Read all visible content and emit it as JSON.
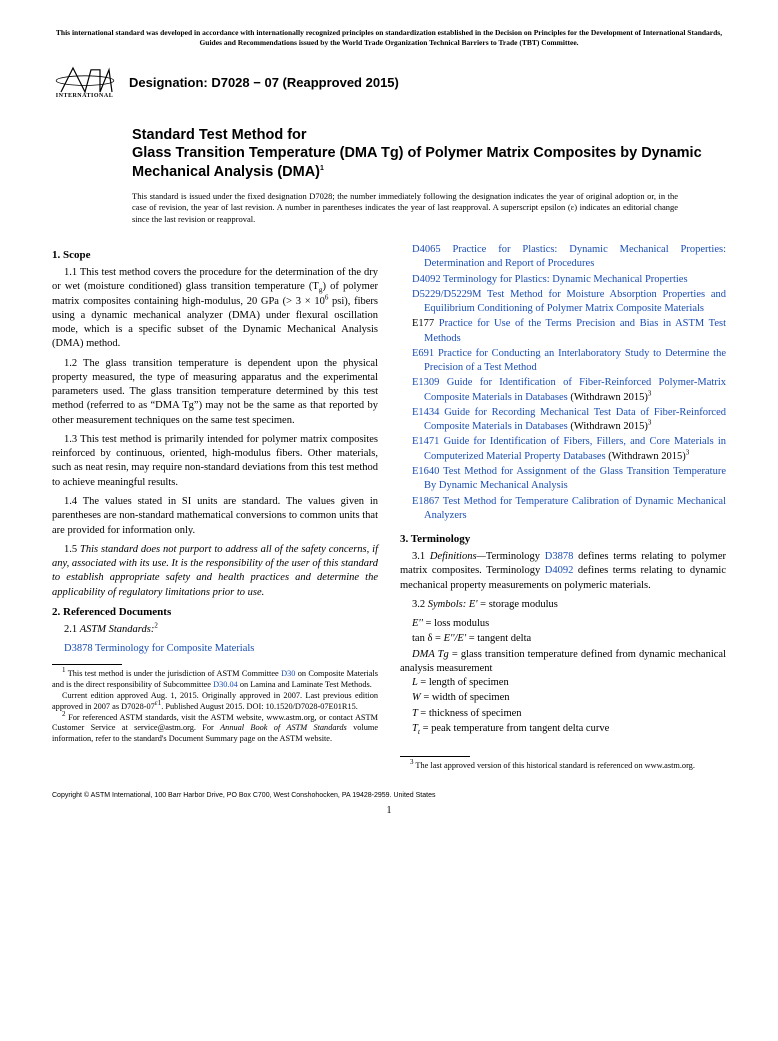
{
  "top_note": "This international standard was developed in accordance with internationally recognized principles on standardization established in the Decision on Principles for the Development of International Standards, Guides and Recommendations issued by the World Trade Organization Technical Barriers to Trade (TBT) Committee.",
  "logo_label": "INTERNATIONAL",
  "designation": "Designation: D7028 − 07 (Reapproved 2015)",
  "title_prefix": "Standard Test Method for",
  "title_main": "Glass Transition Temperature (DMA Tg) of Polymer Matrix Composites by Dynamic Mechanical Analysis (DMA)",
  "title_sup": "1",
  "issuance": "This standard is issued under the fixed designation D7028; the number immediately following the designation indicates the year of original adoption or, in the case of revision, the year of last revision. A number in parentheses indicates the year of last reapproval. A superscript epsilon (ε) indicates an editorial change since the last revision or reapproval.",
  "s1_head": "1. Scope",
  "s1_1a": "1.1 This test method covers the procedure for the determination of the dry or wet (moisture conditioned) glass transition temperature (T",
  "s1_1b": ") of polymer matrix composites containing high-modulus, 20 GPa (> 3 × 10",
  "s1_1c": " psi), fibers using a dynamic mechanical analyzer (DMA) under flexural oscillation mode, which is a specific subset of the Dynamic Mechanical Analysis (DMA) method.",
  "s1_2": "1.2 The glass transition temperature is dependent upon the physical property measured, the type of measuring apparatus and the experimental parameters used. The glass transition temperature determined by this test method (referred to as “DMA Tg”) may not be the same as that reported by other measurement techniques on the same test specimen.",
  "s1_3": "1.3 This test method is primarily intended for polymer matrix composites reinforced by continuous, oriented, high-modulus fibers. Other materials, such as neat resin, may require non-standard deviations from this test method to achieve meaningful results.",
  "s1_4": "1.4 The values stated in SI units are standard. The values given in parentheses are non-standard mathematical conversions to common units that are provided for information only.",
  "s1_5": "1.5 This standard does not purport to address all of the safety concerns, if any, associated with its use. It is the responsibility of the user of this standard to establish appropriate safety and health practices and determine the applicability of regulatory limitations prior to use.",
  "s2_head": "2. Referenced Documents",
  "s2_1": "2.1 ",
  "s2_1_it": "ASTM Standards:",
  "s2_sup": "2",
  "ref_left": {
    "code": "D3878",
    "text": "Terminology for Composite Materials"
  },
  "fn1a": " This test method is under the jurisdiction of ASTM Committee ",
  "fn1_l1": "D30",
  "fn1b": " on Composite Materials and is the direct responsibility of Subcommittee ",
  "fn1_l2": "D30.04",
  "fn1c": " on Lamina and Laminate Test Methods.",
  "fn1d": "Current edition approved Aug. 1, 2015. Originally approved in 2007. Last previous edition approved in 2007 as D7028-07",
  "fn1_eps": "ε1",
  "fn1e": ". Published August 2015. DOI: 10.1520/D7028-07E01R15.",
  "fn2a": " For referenced ASTM standards, visit the ASTM website, www.astm.org, or contact ASTM Customer Service at service@astm.org. For ",
  "fn2_it": "Annual Book of ASTM Standards",
  "fn2b": " volume information, refer to the standard's Document Summary page on the ASTM website.",
  "refs": [
    {
      "code": "D4065",
      "text": "Practice for Plastics: Dynamic Mechanical Properties: Determination and Report of Procedures"
    },
    {
      "code": "D4092",
      "text": "Terminology for Plastics: Dynamic Mechanical Properties"
    },
    {
      "code": "D5229/D5229M",
      "text": "Test Method for Moisture Absorption Properties and Equilibrium Conditioning of Polymer Matrix Composite Materials"
    },
    {
      "code": "E177",
      "text": "Practice for Use of the Terms Precision and Bias in ASTM Test Methods",
      "black": true
    },
    {
      "code": "E691",
      "text": "Practice for Conducting an Interlaboratory Study to Determine the Precision of a Test Method"
    },
    {
      "code": "E1309",
      "text": "Guide for Identification of Fiber-Reinforced Polymer-Matrix Composite Materials in Databases",
      "suffix": " (Withdrawn 2015)",
      "sup": "3"
    },
    {
      "code": "E1434",
      "text": "Guide for Recording Mechanical Test Data of Fiber-Reinforced Composite Materials in Databases",
      "suffix": " (Withdrawn 2015)",
      "sup": "3"
    },
    {
      "code": "E1471",
      "text": "Guide for Identification of Fibers, Fillers, and Core Materials in Computerized Material Property Databases",
      "suffix": " (Withdrawn 2015)",
      "sup": "3"
    },
    {
      "code": "E1640",
      "text": "Test Method for Assignment of the Glass Transition Temperature By Dynamic Mechanical Analysis"
    },
    {
      "code": "E1867",
      "text": "Test Method for Temperature Calibration of Dynamic Mechanical Analyzers"
    }
  ],
  "s3_head": "3. Terminology",
  "s3_1a": "3.1 ",
  "s3_1_it": "Definitions—",
  "s3_1b": "Terminology ",
  "s3_1_l1": "D3878",
  "s3_1c": " defines terms relating to polymer matrix composites. Terminology ",
  "s3_1_l2": "D4092",
  "s3_1d": " defines terms relating to dynamic mechanical property measurements on polymeric materials.",
  "s3_2_pre": "3.2 ",
  "s3_2_it": "Symbols: ",
  "sym_Ep": "E' ",
  "sym_Ep_def": "= storage modulus",
  "sym_Epp": "E'' ",
  "sym_Epp_def": "= loss modulus",
  "sym_tan": "tan δ = ",
  "sym_tan_it": "E''/E' ",
  "sym_tan_def": "= tangent delta",
  "dma_tg_it": "DMA Tg ",
  "dma_tg_def": "= glass transition temperature defined from dynamic mechanical analysis measurement",
  "sym_L": "L ",
  "sym_L_def": "= length of specimen",
  "sym_W": "W ",
  "sym_W_def": "= width of specimen",
  "sym_T": "T ",
  "sym_T_def": "= thickness of specimen",
  "sym_Tt": "T",
  "sym_Tt_sub": "t",
  "sym_Tt_def": " = peak temperature from tangent delta curve",
  "fn3": " The last approved version of this historical standard is referenced on www.astm.org.",
  "copyright": "Copyright © ASTM International, 100 Barr Harbor Drive, PO Box C700, West Conshohocken, PA 19428-2959. United States",
  "page": "1",
  "colors": {
    "link": "#1a4db3",
    "text": "#000000",
    "bg": "#ffffff"
  }
}
